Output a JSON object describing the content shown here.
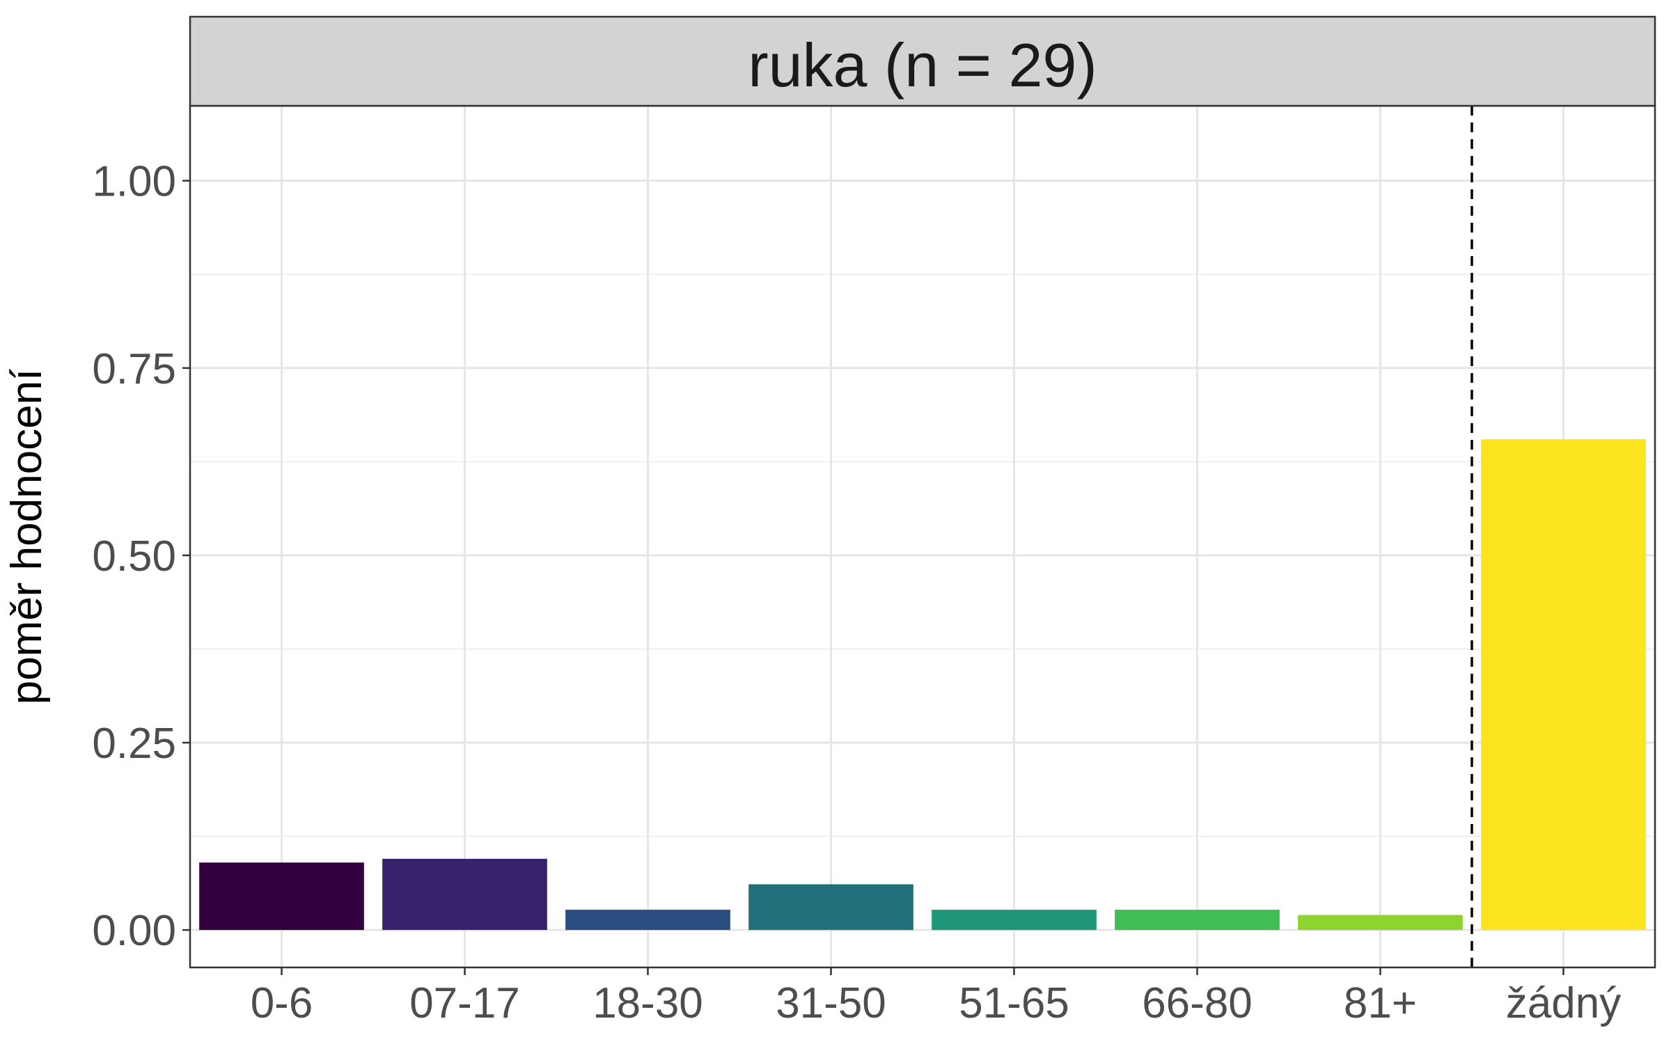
{
  "chart_data": {
    "type": "bar",
    "title": "ruka (n = 29)",
    "xlabel": "",
    "ylabel": "poměr hodnocení",
    "categories": [
      "0-6",
      "07-17",
      "18-30",
      "31-50",
      "51-65",
      "66-80",
      "81+",
      "žádný"
    ],
    "values": [
      0.09,
      0.095,
      0.027,
      0.061,
      0.027,
      0.027,
      0.02,
      0.655
    ],
    "colors": [
      "#33003d",
      "#37226b",
      "#2a4c7e",
      "#206f7a",
      "#1f9677",
      "#40bd55",
      "#8dd52e",
      "#fce51f"
    ],
    "ylim": [
      -0.05,
      1.1
    ],
    "yticks": [
      0,
      0.25,
      0.5,
      0.75,
      1.0
    ],
    "ytick_labels": [
      "0.00",
      "0.25",
      "0.50",
      "0.75",
      "1.00"
    ],
    "reference_line": {
      "style": "dashed",
      "between": [
        "81+",
        "žádný"
      ]
    },
    "grid": true,
    "legend": "none"
  }
}
